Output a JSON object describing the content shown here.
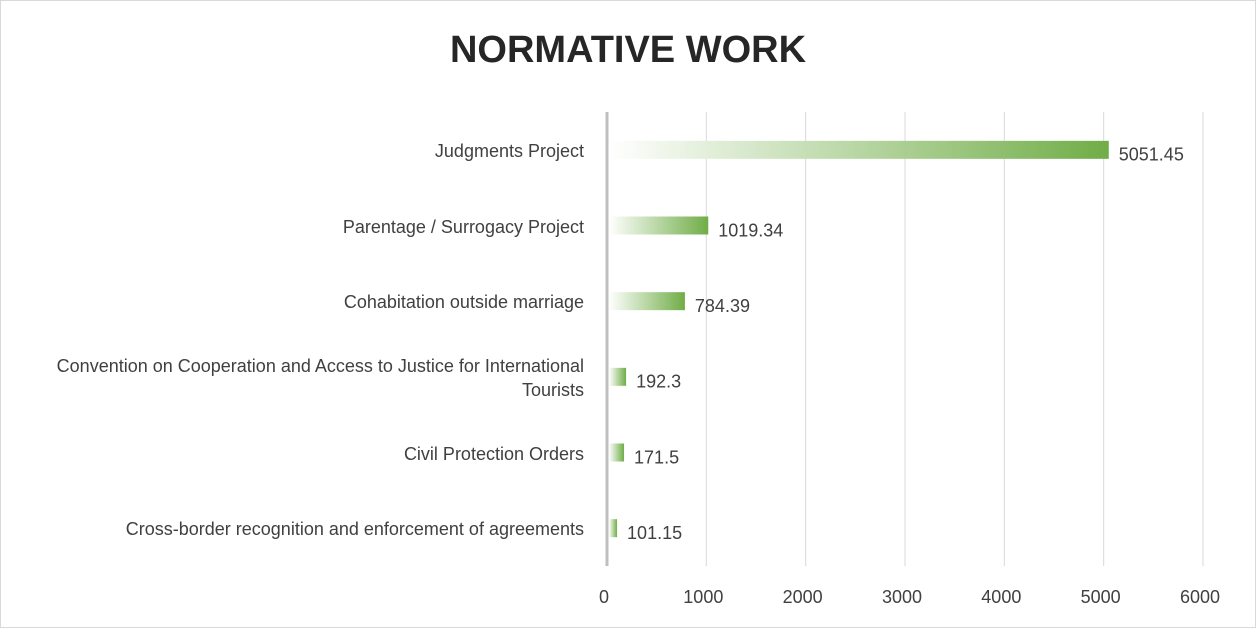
{
  "chart_data": {
    "type": "hbar",
    "title": "NORMATIVE WORK",
    "categories": [
      "Judgments Project",
      "Parentage / Surrogacy Project",
      "Cohabitation outside marriage",
      "Convention on Cooperation and Access to Justice for International Tourists",
      "Civil Protection Orders",
      "Cross-border recognition and enforcement of agreements"
    ],
    "values": [
      5051.45,
      1019.34,
      784.39,
      192.3,
      171.5,
      101.15
    ],
    "color": "#70ad47",
    "xlim": [
      0,
      6000
    ],
    "xticks": [
      0,
      1000,
      2000,
      3000,
      4000,
      5000,
      6000
    ],
    "grid": true
  }
}
